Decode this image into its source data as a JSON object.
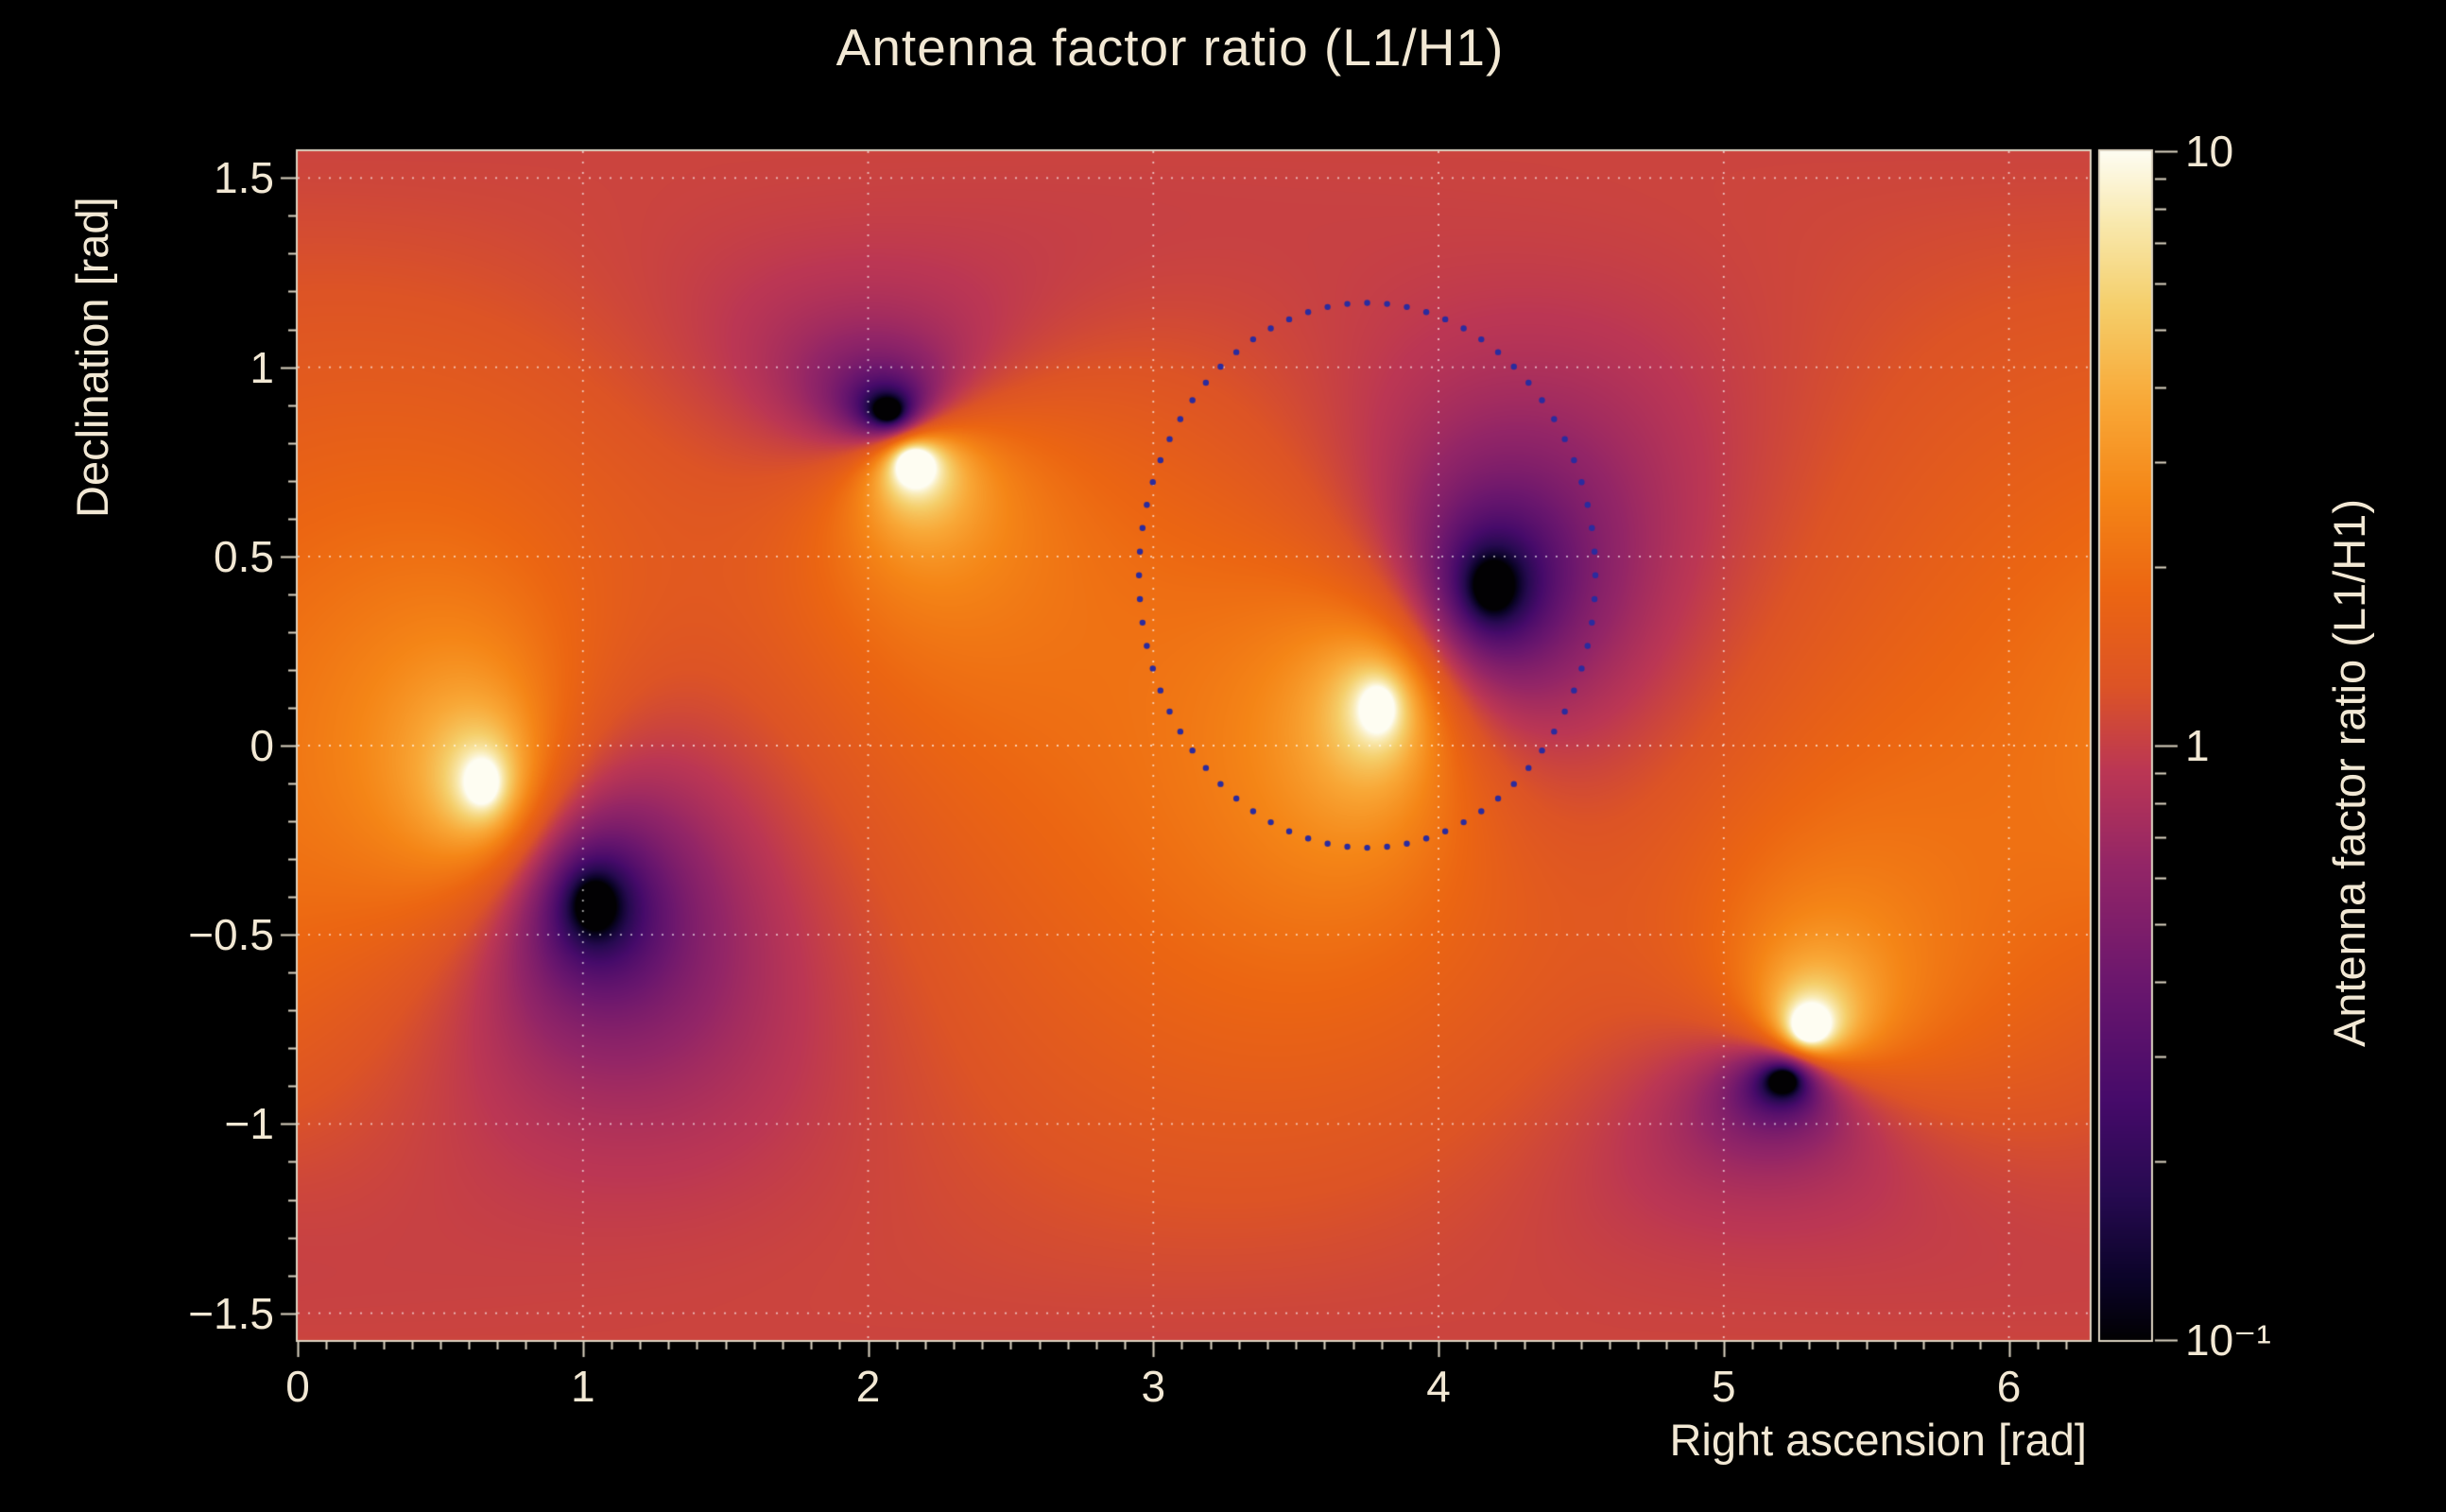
{
  "title": "Antenna factor ratio (L1/H1)",
  "axes": {
    "x": {
      "label": "Right ascension [rad]",
      "min": 0,
      "max": 6.2832,
      "minor_step": 0.1,
      "ticks": [
        {
          "v": 0,
          "label": "0"
        },
        {
          "v": 1,
          "label": "1"
        },
        {
          "v": 2,
          "label": "2"
        },
        {
          "v": 3,
          "label": "3"
        },
        {
          "v": 4,
          "label": "4"
        },
        {
          "v": 5,
          "label": "5"
        },
        {
          "v": 6,
          "label": "6"
        }
      ]
    },
    "y": {
      "label": "Declination [rad]",
      "min": -1.5708,
      "max": 1.5708,
      "minor_step": 0.1,
      "ticks": [
        {
          "v": 1.5,
          "label": "1.5"
        },
        {
          "v": 1,
          "label": "1"
        },
        {
          "v": 0.5,
          "label": "0.5"
        },
        {
          "v": 0,
          "label": "0"
        },
        {
          "v": -0.5,
          "label": "−0.5"
        },
        {
          "v": -1,
          "label": "−1"
        },
        {
          "v": -1.5,
          "label": "−1.5"
        }
      ]
    },
    "colorbar": {
      "label": "Antenna factor ratio (L1/H1)",
      "scale": "log",
      "min": 0.1,
      "max": 10,
      "ticks": [
        {
          "v": 10,
          "label": "10"
        },
        {
          "v": 1,
          "label": "1"
        },
        {
          "v": 0.1,
          "label": "10⁻¹"
        }
      ],
      "minor_ticks": [
        0.2,
        0.3,
        0.4,
        0.5,
        0.6,
        0.7,
        0.8,
        0.9,
        2,
        3,
        4,
        5,
        6,
        7,
        8,
        9
      ]
    }
  },
  "colors": {
    "background": "#000000",
    "text": "#f2e8d4",
    "grid": "rgba(255,255,255,0.65)",
    "frame": "rgba(243,234,214,0.9)",
    "contour": "#2b2b9e"
  },
  "colormap": {
    "stops": [
      [
        0.0,
        "#020103"
      ],
      [
        0.05,
        "#0b0428"
      ],
      [
        0.12,
        "#260a50"
      ],
      [
        0.2,
        "#460b6a"
      ],
      [
        0.3,
        "#6b176e"
      ],
      [
        0.4,
        "#942667"
      ],
      [
        0.48,
        "#bc3754"
      ],
      [
        0.55,
        "#dd5426"
      ],
      [
        0.63,
        "#ec6612"
      ],
      [
        0.71,
        "#f58617"
      ],
      [
        0.79,
        "#f9a938"
      ],
      [
        0.87,
        "#f5cf6b"
      ],
      [
        0.94,
        "#f9e9ae"
      ],
      [
        1.0,
        "#fefdf2"
      ]
    ]
  },
  "chart_data": {
    "type": "heatmap",
    "title": "Antenna factor ratio (L1/H1)",
    "xlabel": "Right ascension [rad]",
    "ylabel": "Declination [rad]",
    "zlabel": "Antenna factor ratio (L1/H1)",
    "xlim": [
      0,
      6.2832
    ],
    "ylim": [
      -1.5708,
      1.5708
    ],
    "zlim": [
      0.1,
      10
    ],
    "zscale": "log",
    "background_ratio": 1.45,
    "background_log10": 0.1,
    "maxima": [
      {
        "ra": 0.65,
        "dec": -0.1,
        "weight": 1.0
      },
      {
        "ra": 3.79,
        "dec": 0.1,
        "weight": 1.0
      },
      {
        "ra": 2.16,
        "dec": 0.745,
        "weight": 1.6
      },
      {
        "ra": 5.3,
        "dec": -0.745,
        "weight": 1.6
      }
    ],
    "minima": [
      {
        "ra": 1.04,
        "dec": -0.42,
        "weight": 1.25
      },
      {
        "ra": 4.19,
        "dec": 0.42,
        "weight": 1.25
      },
      {
        "ra": 2.07,
        "dec": 0.885,
        "weight": 1.6
      },
      {
        "ra": 5.21,
        "dec": -0.885,
        "weight": 1.6
      }
    ],
    "contour": {
      "style": "dotted",
      "center_ra": 3.75,
      "center_dec": 0.45,
      "radius_ra": 0.8,
      "radius_dec": 0.72,
      "dots": 72,
      "color": "#2b2b9e"
    },
    "grid": {
      "style": "dotted",
      "x_lines": [
        1,
        2,
        3,
        4,
        5,
        6
      ],
      "y_lines": [
        -1.5,
        -1,
        -0.5,
        0,
        0.5,
        1,
        1.5
      ]
    }
  }
}
